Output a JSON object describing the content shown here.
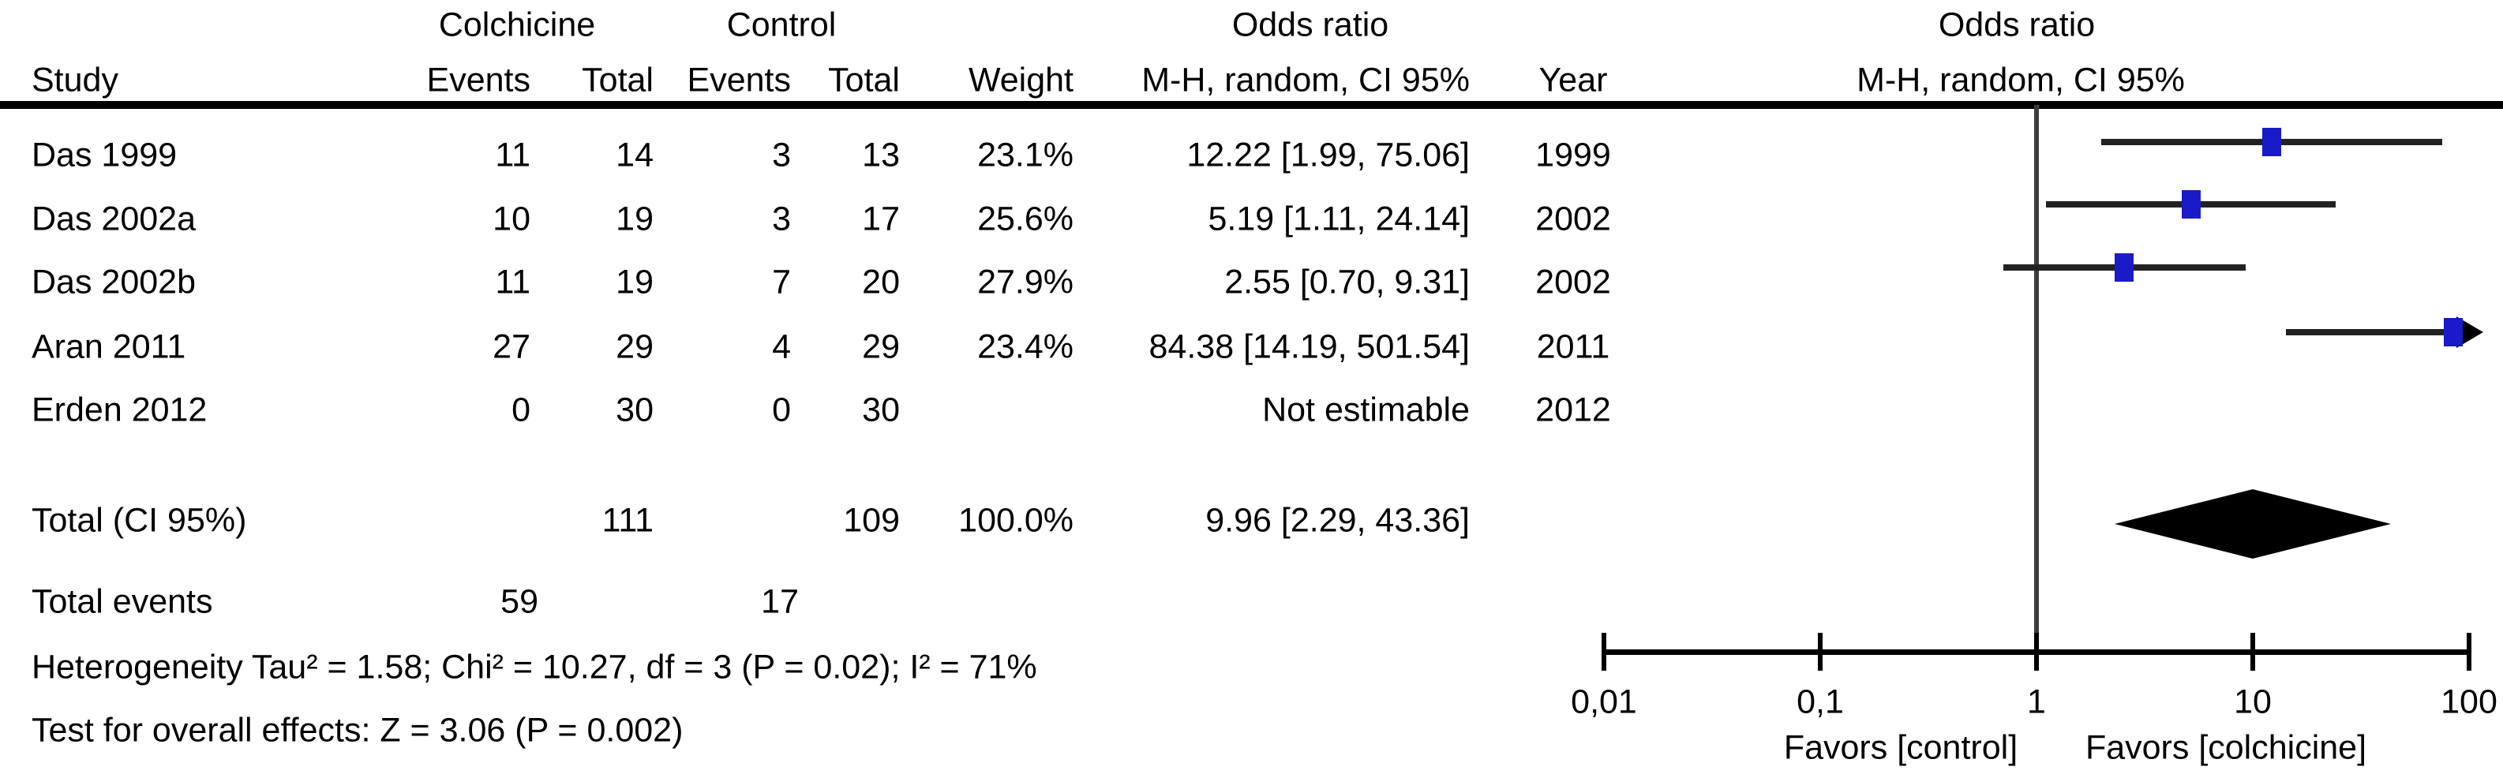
{
  "table": {
    "group_headers": {
      "colchicine": "Colchicine",
      "control": "Control",
      "odds_ratio_left": "Odds ratio",
      "odds_ratio_right": "Odds ratio"
    },
    "col_headers": {
      "study": "Study",
      "events1": "Events",
      "total1": "Total",
      "events2": "Events",
      "total2": "Total",
      "weight": "Weight",
      "mh_left": "M-H, random, CI 95%",
      "year": "Year",
      "mh_right": "M-H, random, CI 95%"
    },
    "rows": [
      {
        "study": "Das 1999",
        "events1": "11",
        "total1": "14",
        "events2": "3",
        "total2": "13",
        "weight": "23.1%",
        "or_text": "12.22 [1.99, 75.06]",
        "year": "1999"
      },
      {
        "study": "Das 2002a",
        "events1": "10",
        "total1": "19",
        "events2": "3",
        "total2": "17",
        "weight": "25.6%",
        "or_text": "5.19 [1.11, 24.14]",
        "year": "2002"
      },
      {
        "study": "Das 2002b",
        "events1": "11",
        "total1": "19",
        "events2": "7",
        "total2": "20",
        "weight": "27.9%",
        "or_text": "2.55 [0.70, 9.31]",
        "year": "2002"
      },
      {
        "study": "Aran 2011",
        "events1": "27",
        "total1": "29",
        "events2": "4",
        "total2": "29",
        "weight": "23.4%",
        "or_text": "84.38 [14.19, 501.54]",
        "year": "2011"
      },
      {
        "study": "Erden 2012",
        "events1": "0",
        "total1": "30",
        "events2": "0",
        "total2": "30",
        "weight": "",
        "or_text": "Not estimable",
        "year": "2012"
      }
    ],
    "total_row": {
      "label": "Total (CI 95%)",
      "total1": "111",
      "total2": "109",
      "weight": "100.0%",
      "or_text": "9.96 [2.29, 43.36]"
    },
    "total_events": {
      "label": "Total events",
      "events1": "59",
      "events2": "17"
    },
    "heterogeneity": "Heterogeneity Tau² = 1.58; Chi² = 10.27, df = 3 (P = 0.02); I² = 71%",
    "overall_effect": "Test for overall effects: Z = 3.06 (P = 0.002)"
  },
  "chart_data": {
    "type": "forest",
    "x_scale": "log10",
    "xlim": [
      0.01,
      100
    ],
    "null_line_value": 1,
    "x_ticks": [
      {
        "label": "0,01",
        "value": 0.01
      },
      {
        "label": "0,1",
        "value": 0.1
      },
      {
        "label": "1",
        "value": 1
      },
      {
        "label": "10",
        "value": 10
      },
      {
        "label": "100",
        "value": 100
      }
    ],
    "favors_left": "Favors [control]",
    "favors_right": "Favors [colchicine]",
    "marker_color": "#1a1ac8",
    "line_color": "#222222",
    "diamond_color": "#000000",
    "studies": [
      {
        "name": "Das 1999",
        "events_colchicine": 11,
        "total_colchicine": 14,
        "events_control": 3,
        "total_control": 13,
        "weight_pct": 23.1,
        "or": 12.22,
        "ci_low": 1.99,
        "ci_high": 75.06,
        "year": 1999
      },
      {
        "name": "Das 2002a",
        "events_colchicine": 10,
        "total_colchicine": 19,
        "events_control": 3,
        "total_control": 17,
        "weight_pct": 25.6,
        "or": 5.19,
        "ci_low": 1.11,
        "ci_high": 24.14,
        "year": 2002
      },
      {
        "name": "Das 2002b",
        "events_colchicine": 11,
        "total_colchicine": 19,
        "events_control": 7,
        "total_control": 20,
        "weight_pct": 27.9,
        "or": 2.55,
        "ci_low": 0.7,
        "ci_high": 9.31,
        "year": 2002
      },
      {
        "name": "Aran 2011",
        "events_colchicine": 27,
        "total_colchicine": 29,
        "events_control": 4,
        "total_control": 29,
        "weight_pct": 23.4,
        "or": 84.38,
        "ci_low": 14.19,
        "ci_high": 501.54,
        "year": 2011
      },
      {
        "name": "Erden 2012",
        "events_colchicine": 0,
        "total_colchicine": 30,
        "events_control": 0,
        "total_control": 30,
        "weight_pct": null,
        "or": null,
        "ci_low": null,
        "ci_high": null,
        "year": 2012,
        "not_estimable": true
      }
    ],
    "total": {
      "or": 9.96,
      "ci_low": 2.29,
      "ci_high": 43.36,
      "total_colchicine": 111,
      "total_control": 109,
      "weight_pct": 100.0
    }
  }
}
